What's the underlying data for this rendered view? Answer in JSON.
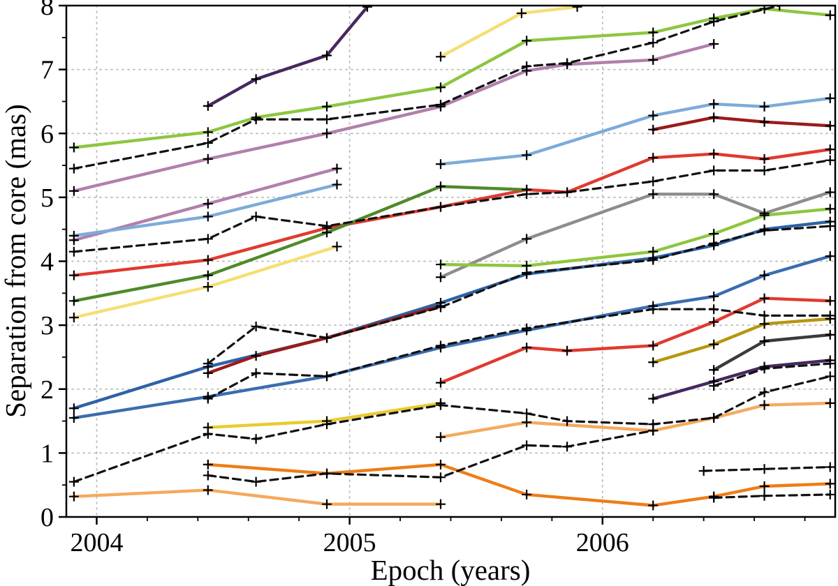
{
  "chart_data": {
    "type": "line",
    "title": "",
    "xlabel": "Epoch (years)",
    "ylabel": "Separation from core (mas)",
    "xlim": [
      2003.88,
      2006.92
    ],
    "ylim": [
      0,
      8
    ],
    "x_ticks": [
      2004,
      2005,
      2006
    ],
    "x_tick_labels": [
      "2004",
      "2005",
      "2006"
    ],
    "y_ticks": [
      0,
      1,
      2,
      3,
      4,
      5,
      6,
      7,
      8
    ],
    "y_tick_labels": [
      "0",
      "1",
      "2",
      "3",
      "4",
      "5",
      "6",
      "7",
      "8"
    ],
    "x_minor_ticks": [
      2004.2,
      2004.4,
      2004.6,
      2004.8,
      2005.2,
      2005.4,
      2005.6,
      2005.8,
      2006.2,
      2006.4,
      2006.6,
      2006.8
    ],
    "y_minor_ticks": [
      0.5,
      1.5,
      2.5,
      3.5,
      4.5,
      5.5,
      6.5,
      7.5
    ],
    "grid": {
      "horizontal": [
        1,
        2,
        3,
        4,
        5,
        6,
        7
      ],
      "vertical": [
        2004,
        2005,
        2006
      ],
      "color": "#b9b9b9"
    },
    "axis_color": "#000000",
    "marker": "+",
    "marker_color": "#000000",
    "legend": "none",
    "series": [
      {
        "name": "green-upper-long",
        "color": "#8dc63f",
        "style": "solid",
        "x": [
          2003.91,
          2004.44,
          2004.63,
          2004.91,
          2005.36,
          2005.7,
          2006.2,
          2006.44,
          2006.64,
          2006.9
        ],
        "y": [
          5.78,
          6.02,
          6.25,
          6.42,
          6.72,
          7.45,
          7.58,
          7.8,
          7.95,
          7.85
        ]
      },
      {
        "name": "darkpurple-steep",
        "color": "#46285f",
        "style": "solid",
        "x": [
          2004.44,
          2004.63,
          2004.91,
          2005.07
        ],
        "y": [
          6.43,
          6.85,
          7.22,
          7.98
        ]
      },
      {
        "name": "yellow-top",
        "color": "#f4df73",
        "style": "solid",
        "x": [
          2005.36,
          2005.68,
          2005.9
        ],
        "y": [
          7.2,
          7.88,
          7.98
        ]
      },
      {
        "name": "plum-long",
        "color": "#b180ab",
        "style": "solid",
        "x": [
          2003.91,
          2004.44,
          2004.91,
          2005.36,
          2005.7,
          2005.86,
          2006.2,
          2006.44
        ],
        "y": [
          5.1,
          5.6,
          6.0,
          6.42,
          6.98,
          7.08,
          7.15,
          7.4
        ]
      },
      {
        "name": "plum-short",
        "color": "#b180ab",
        "style": "solid",
        "x": [
          2003.91,
          2004.44,
          2004.95
        ],
        "y": [
          4.33,
          4.9,
          5.45
        ]
      },
      {
        "name": "lightblue-left",
        "color": "#7dabda",
        "style": "solid",
        "x": [
          2003.91,
          2004.44,
          2004.95
        ],
        "y": [
          4.4,
          4.7,
          5.2
        ]
      },
      {
        "name": "lightblue-right",
        "color": "#7dabda",
        "style": "solid",
        "x": [
          2005.36,
          2005.7,
          2006.2,
          2006.44,
          2006.64,
          2006.9
        ],
        "y": [
          5.52,
          5.66,
          6.28,
          6.46,
          6.42,
          6.55
        ]
      },
      {
        "name": "darkred-right",
        "color": "#9b1b1b",
        "style": "solid",
        "x": [
          2006.2,
          2006.44,
          2006.64,
          2006.9
        ],
        "y": [
          6.06,
          6.25,
          6.18,
          6.12
        ]
      },
      {
        "name": "red-long",
        "color": "#e03a30",
        "style": "solid",
        "x": [
          2003.91,
          2004.44,
          2004.91,
          2005.36,
          2005.7,
          2005.86,
          2006.2,
          2006.44,
          2006.64,
          2006.9
        ],
        "y": [
          3.78,
          4.02,
          4.52,
          4.85,
          5.12,
          5.08,
          5.62,
          5.68,
          5.6,
          5.75
        ]
      },
      {
        "name": "darkgreen-left",
        "color": "#4e8a2a",
        "style": "solid",
        "x": [
          2003.91,
          2004.44,
          2004.91,
          2005.36,
          2005.7
        ],
        "y": [
          3.38,
          3.78,
          4.45,
          5.17,
          5.12
        ]
      },
      {
        "name": "yellow-left",
        "color": "#f4df73",
        "style": "solid",
        "x": [
          2003.91,
          2004.44,
          2004.95
        ],
        "y": [
          3.12,
          3.6,
          4.23
        ]
      },
      {
        "name": "gray-right",
        "color": "#8d8d8d",
        "style": "solid",
        "x": [
          2005.36,
          2005.7,
          2006.2,
          2006.44,
          2006.64,
          2006.9
        ],
        "y": [
          3.75,
          4.35,
          5.05,
          5.05,
          4.75,
          5.08
        ]
      },
      {
        "name": "green-mid-right",
        "color": "#8dc63f",
        "style": "solid",
        "x": [
          2005.36,
          2005.7,
          2006.2,
          2006.44,
          2006.64,
          2006.9
        ],
        "y": [
          3.95,
          3.93,
          4.15,
          4.43,
          4.72,
          4.82
        ]
      },
      {
        "name": "blue-steep",
        "color": "#2e62a5",
        "style": "solid",
        "x": [
          2003.91,
          2004.44,
          2004.91,
          2005.36,
          2005.7,
          2006.2,
          2006.44,
          2006.64,
          2006.9
        ],
        "y": [
          1.7,
          2.35,
          2.8,
          3.35,
          3.8,
          4.05,
          4.25,
          4.5,
          4.62
        ]
      },
      {
        "name": "blue-low",
        "color": "#3a6cb0",
        "style": "solid",
        "x": [
          2003.91,
          2004.44,
          2004.91,
          2005.36,
          2005.7,
          2006.2,
          2006.44,
          2006.64,
          2006.9
        ],
        "y": [
          1.55,
          1.88,
          2.2,
          2.65,
          2.92,
          3.3,
          3.45,
          3.78,
          4.08
        ]
      },
      {
        "name": "darkred-low",
        "color": "#9b1b1b",
        "style": "solid",
        "x": [
          2004.44,
          2004.63,
          2004.91,
          2005.36
        ],
        "y": [
          2.25,
          2.52,
          2.8,
          3.3
        ]
      },
      {
        "name": "red-low",
        "color": "#e03a30",
        "style": "solid",
        "x": [
          2005.36,
          2005.7,
          2005.86,
          2006.2,
          2006.44,
          2006.64,
          2006.9
        ],
        "y": [
          2.1,
          2.65,
          2.6,
          2.68,
          3.05,
          3.42,
          3.38
        ]
      },
      {
        "name": "olive-right",
        "color": "#b6960e",
        "style": "solid",
        "x": [
          2006.2,
          2006.44,
          2006.64,
          2006.9
        ],
        "y": [
          2.42,
          2.7,
          3.02,
          3.1
        ]
      },
      {
        "name": "black-right",
        "color": "#3b3b3b",
        "style": "solid",
        "x": [
          2006.44,
          2006.64,
          2006.9
        ],
        "y": [
          2.3,
          2.75,
          2.85
        ]
      },
      {
        "name": "purple-right",
        "color": "#46285f",
        "style": "solid",
        "x": [
          2006.2,
          2006.44,
          2006.64,
          2006.9
        ],
        "y": [
          1.85,
          2.12,
          2.35,
          2.45
        ]
      },
      {
        "name": "gold-mid",
        "color": "#eacb30",
        "style": "solid",
        "x": [
          2004.44,
          2004.91,
          2005.36
        ],
        "y": [
          1.4,
          1.5,
          1.78
        ]
      },
      {
        "name": "orange-light-right",
        "color": "#f5a95e",
        "style": "solid",
        "x": [
          2005.36,
          2005.7,
          2006.2,
          2006.44,
          2006.64,
          2006.9
        ],
        "y": [
          1.25,
          1.48,
          1.35,
          1.55,
          1.75,
          1.78
        ]
      },
      {
        "name": "orange-dark-long",
        "color": "#ee7d18",
        "style": "solid",
        "x": [
          2004.44,
          2004.91,
          2005.36,
          2005.7,
          2006.2,
          2006.44,
          2006.64,
          2006.9
        ],
        "y": [
          0.82,
          0.68,
          0.82,
          0.35,
          0.18,
          0.32,
          0.48,
          0.52
        ]
      },
      {
        "name": "orange-light-left",
        "color": "#f5a95e",
        "style": "solid",
        "x": [
          2003.91,
          2004.44,
          2004.91,
          2005.36
        ],
        "y": [
          0.32,
          0.42,
          0.2,
          0.2
        ]
      },
      {
        "name": "dashed-upper",
        "color": "#111111",
        "style": "dashed",
        "x": [
          2003.91,
          2004.44,
          2004.63,
          2004.91,
          2005.36,
          2005.7,
          2005.86,
          2006.2,
          2006.44,
          2006.7
        ],
        "y": [
          5.45,
          5.85,
          6.22,
          6.22,
          6.45,
          7.05,
          7.1,
          7.42,
          7.75,
          8.0
        ]
      },
      {
        "name": "dashed-mid-upper",
        "color": "#111111",
        "style": "dashed",
        "x": [
          2003.91,
          2004.44,
          2004.63,
          2004.91,
          2005.36,
          2005.7,
          2005.86,
          2006.2,
          2006.44,
          2006.64,
          2006.9
        ],
        "y": [
          4.15,
          4.35,
          4.7,
          4.55,
          4.85,
          5.05,
          5.08,
          5.25,
          5.42,
          5.42,
          5.58
        ]
      },
      {
        "name": "dashed-mid",
        "color": "#111111",
        "style": "dashed",
        "x": [
          2004.44,
          2004.63,
          2004.91,
          2005.36,
          2005.7,
          2006.2,
          2006.44,
          2006.64,
          2006.9
        ],
        "y": [
          2.4,
          2.98,
          2.8,
          3.28,
          3.82,
          4.02,
          4.28,
          4.48,
          4.55
        ]
      },
      {
        "name": "dashed-mid-low",
        "color": "#111111",
        "style": "dashed",
        "x": [
          2004.44,
          2004.63,
          2004.91,
          2005.36,
          2005.7,
          2006.2,
          2006.44,
          2006.64,
          2006.9
        ],
        "y": [
          1.85,
          2.25,
          2.2,
          2.68,
          2.95,
          3.25,
          3.25,
          3.15,
          3.15
        ]
      },
      {
        "name": "dashed-low",
        "color": "#111111",
        "style": "dashed",
        "x": [
          2003.91,
          2004.44,
          2004.63,
          2004.91,
          2005.36,
          2005.7,
          2005.86,
          2006.2,
          2006.44,
          2006.64,
          2006.9
        ],
        "y": [
          0.55,
          1.3,
          1.22,
          1.45,
          1.75,
          1.62,
          1.5,
          1.45,
          1.55,
          1.95,
          2.2
        ]
      },
      {
        "name": "dashed-bottom",
        "color": "#111111",
        "style": "dashed",
        "x": [
          2004.44,
          2004.63,
          2004.91,
          2005.36,
          2005.7,
          2005.86,
          2006.2
        ],
        "y": [
          0.65,
          0.55,
          0.68,
          0.62,
          1.12,
          1.1,
          1.35
        ]
      },
      {
        "name": "dashed-right-1",
        "color": "#111111",
        "style": "dashed",
        "x": [
          2006.4,
          2006.64,
          2006.9
        ],
        "y": [
          0.72,
          0.75,
          0.78
        ]
      },
      {
        "name": "dashed-right-2",
        "color": "#111111",
        "style": "dashed",
        "x": [
          2006.44,
          2006.64,
          2006.9
        ],
        "y": [
          0.3,
          0.33,
          0.35
        ]
      },
      {
        "name": "dashed-right-3",
        "color": "#111111",
        "style": "dashed",
        "x": [
          2006.44,
          2006.64,
          2006.9
        ],
        "y": [
          2.05,
          2.32,
          2.4
        ]
      }
    ]
  }
}
